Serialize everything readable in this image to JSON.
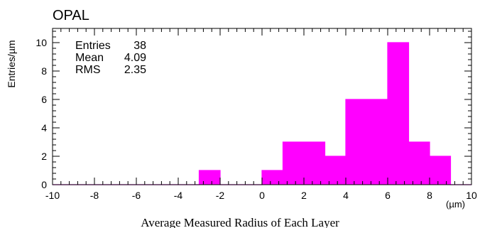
{
  "chart_data": {
    "type": "bar",
    "title": "OPAL",
    "xlabel": "Average Measured Radius of Each Layer",
    "xunit": "(µm)",
    "ylabel": "Entries/µm",
    "xlim": [
      -10,
      10
    ],
    "ylim": [
      0,
      11
    ],
    "bin_width": 1,
    "bin_edges": [
      -10,
      -9,
      -8,
      -7,
      -6,
      -5,
      -4,
      -3,
      -2,
      -1,
      0,
      1,
      2,
      3,
      4,
      5,
      6,
      7,
      8,
      9,
      10
    ],
    "values": [
      0,
      0,
      0,
      0,
      0,
      0,
      0,
      1,
      0,
      0,
      1,
      3,
      3,
      2,
      6,
      6,
      10,
      3,
      2,
      0
    ],
    "x_ticks": [
      "-10",
      "-8",
      "-6",
      "-4",
      "-2",
      "0",
      "2",
      "4",
      "6",
      "8",
      "10"
    ],
    "y_ticks": [
      "0",
      "2",
      "4",
      "6",
      "8",
      "10"
    ],
    "bar_color": "#ff00ff",
    "grid": false,
    "stats": [
      {
        "label": "Entries",
        "value": "38"
      },
      {
        "label": "Mean",
        "value": "4.09"
      },
      {
        "label": "RMS",
        "value": "2.35"
      }
    ]
  }
}
